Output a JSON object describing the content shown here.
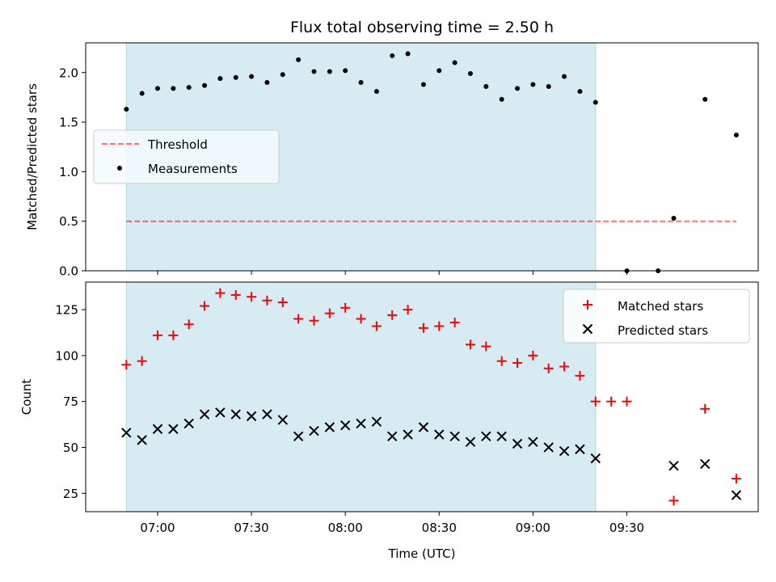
{
  "chart_data": {
    "title": "Flux total observing time = 2.50 h",
    "xlabel": "Time (UTC)",
    "x_tick_labels": [
      "07:00",
      "07:30",
      "08:00",
      "08:30",
      "09:00",
      "09:30"
    ],
    "x_ticks_minutes": [
      420,
      450,
      480,
      510,
      540,
      570
    ],
    "xlim_minutes": [
      397,
      612
    ],
    "shaded_span_minutes": [
      410,
      560
    ],
    "colors": {
      "shade": "#add8e6",
      "threshold": "#ff0000",
      "measurements": "#000000",
      "matched": "#ff0000",
      "predicted": "#000000",
      "legend_bg": "#f5fafd"
    },
    "top": {
      "type": "scatter",
      "ylabel": "Matched/Predicted stars",
      "ylim": [
        0,
        2.3
      ],
      "y_ticks": [
        0,
        0.5,
        1,
        1.5,
        2
      ],
      "y_tick_labels": [
        "0.0",
        "0.5",
        "1.0",
        "1.5",
        "2.0"
      ],
      "threshold": {
        "name": "Threshold",
        "value": 0.5,
        "x_range_minutes": [
          410,
          605
        ]
      },
      "measurements": {
        "name": "Measurements",
        "x_minutes": [
          410,
          415,
          420,
          425,
          430,
          435,
          440,
          445,
          450,
          455,
          460,
          465,
          470,
          475,
          480,
          485,
          490,
          495,
          500,
          505,
          510,
          515,
          520,
          525,
          530,
          535,
          540,
          545,
          550,
          555,
          560,
          565,
          570,
          575,
          580,
          585,
          590,
          595,
          600,
          605
        ],
        "values": [
          1.63,
          1.79,
          1.84,
          1.84,
          1.85,
          1.87,
          1.94,
          1.95,
          1.96,
          1.9,
          1.98,
          2.13,
          2.01,
          2.01,
          2.02,
          1.9,
          1.81,
          2.17,
          2.19,
          1.88,
          2.02,
          2.1,
          1.99,
          1.86,
          1.73,
          1.84,
          1.88,
          1.86,
          1.96,
          1.81,
          1.7,
          null,
          0.0,
          null,
          0.0,
          0.53,
          null,
          1.73,
          null,
          1.37
        ]
      },
      "legend": {
        "placement": "center-left",
        "entries": [
          "Threshold",
          "Measurements"
        ]
      }
    },
    "bottom": {
      "type": "scatter",
      "ylabel": "Count",
      "ylim": [
        15,
        140
      ],
      "y_ticks": [
        25,
        50,
        75,
        100,
        125
      ],
      "y_tick_labels": [
        "25",
        "50",
        "75",
        "100",
        "125"
      ],
      "series": [
        {
          "name": "Matched stars",
          "marker": "plus",
          "x_minutes": [
            410,
            415,
            420,
            425,
            430,
            435,
            440,
            445,
            450,
            455,
            460,
            465,
            470,
            475,
            480,
            485,
            490,
            495,
            500,
            505,
            510,
            515,
            520,
            525,
            530,
            535,
            540,
            545,
            550,
            555,
            560,
            565,
            570,
            575,
            580,
            585,
            590,
            595,
            600,
            605
          ],
          "values": [
            95,
            97,
            111,
            111,
            117,
            127,
            134,
            133,
            132,
            130,
            129,
            120,
            119,
            123,
            126,
            120,
            116,
            122,
            125,
            115,
            116,
            118,
            106,
            105,
            97,
            96,
            100,
            93,
            94,
            89,
            75,
            75,
            75,
            null,
            null,
            21,
            null,
            71,
            null,
            33
          ]
        },
        {
          "name": "Predicted stars",
          "marker": "x",
          "x_minutes": [
            410,
            415,
            420,
            425,
            430,
            435,
            440,
            445,
            450,
            455,
            460,
            465,
            470,
            475,
            480,
            485,
            490,
            495,
            500,
            505,
            510,
            515,
            520,
            525,
            530,
            535,
            540,
            545,
            550,
            555,
            560,
            565,
            570,
            575,
            580,
            585,
            590,
            595,
            600,
            605
          ],
          "values": [
            58,
            54,
            60,
            60,
            63,
            68,
            69,
            68,
            67,
            68,
            65,
            56,
            59,
            61,
            62,
            63,
            64,
            56,
            57,
            61,
            57,
            56,
            53,
            56,
            56,
            52,
            53,
            50,
            48,
            49,
            44,
            null,
            null,
            null,
            null,
            40,
            null,
            41,
            null,
            24
          ]
        }
      ],
      "legend": {
        "placement": "top-right",
        "entries": [
          "Matched stars",
          "Predicted stars"
        ]
      }
    }
  }
}
